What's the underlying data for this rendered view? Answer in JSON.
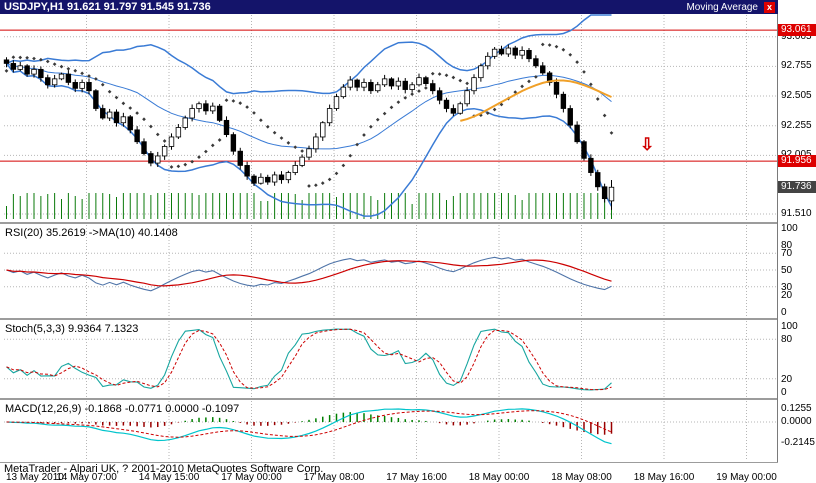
{
  "window": {
    "title": "USDJPY,H1  91.621 91.797 91.545 91.736",
    "indicator_label": "Moving Average",
    "close_button": "x"
  },
  "status_bar": {
    "text": "MetaTrader - Alpari UK, ? 2001-2010 MetaQuotes Software Corp."
  },
  "annotations": {
    "down_arrow_glyph": "⇩"
  },
  "colors": {
    "titlebar_bg": "#14146a",
    "grid": "#b6b6b6",
    "hline": "#d40000",
    "bands": "#3a7bd5",
    "ma": "#f0a028",
    "bull_body": "#ffffff",
    "bear_body": "#000000",
    "outline": "#000000",
    "volume": "#0a7a0a",
    "rsi": "#4f74a8",
    "signal_red": "#cc0000",
    "stoch": "#17a6a0",
    "macd_line": "#00c4cc",
    "macd_pos": "#007f00",
    "macd_neg": "#990000",
    "badge_red": "#dd0000",
    "badge_dark": "#444444"
  },
  "panels": {
    "rsi": {
      "label": "RSI(20) 35.2619  ->MA(10) 40.1408",
      "ticks": [
        "100",
        "80",
        "70",
        "50",
        "30",
        "20",
        "0"
      ],
      "grid": [
        70,
        50,
        30
      ],
      "range": [
        0,
        100
      ]
    },
    "stoch": {
      "label": "Stoch(5,3,3) 9.9364 7.1323",
      "ticks": [
        "100",
        "80",
        "20",
        "0"
      ],
      "grid": [
        80,
        20
      ],
      "range": [
        0,
        100
      ]
    },
    "macd": {
      "label": "MACD(12,26,9) -0.1868 -0.0771 0.0000 -0.1097",
      "ticks": [
        "0.1255",
        "0.0000",
        "-0.2145"
      ]
    }
  },
  "chart_data": {
    "type": "candlestick",
    "symbol": "USDJPY",
    "timeframe": "H1",
    "ohlc_current": {
      "open": 91.621,
      "high": 91.797,
      "low": 91.545,
      "close": 91.736
    },
    "closes": [
      92.78,
      92.73,
      92.76,
      92.69,
      92.73,
      92.66,
      92.6,
      92.65,
      92.69,
      92.62,
      92.57,
      92.62,
      92.55,
      92.4,
      92.32,
      92.37,
      92.28,
      92.33,
      92.22,
      92.12,
      92.02,
      91.94,
      92.0,
      92.08,
      92.16,
      92.24,
      92.32,
      92.4,
      92.44,
      92.38,
      92.42,
      92.3,
      92.18,
      92.04,
      91.92,
      91.83,
      91.77,
      91.82,
      91.78,
      91.84,
      91.8,
      91.86,
      91.92,
      91.99,
      92.06,
      92.16,
      92.28,
      92.4,
      92.5,
      92.58,
      92.64,
      92.58,
      92.62,
      92.55,
      92.6,
      92.65,
      92.59,
      92.63,
      92.56,
      92.6,
      92.66,
      92.61,
      92.55,
      92.47,
      92.4,
      92.36,
      92.44,
      92.55,
      92.66,
      92.76,
      92.84,
      92.9,
      92.86,
      92.91,
      92.85,
      92.89,
      92.82,
      92.76,
      92.7,
      92.62,
      92.52,
      92.4,
      92.26,
      92.12,
      91.98,
      91.86,
      91.74,
      91.64,
      91.736
    ],
    "x_labels": [
      "13 May 2010",
      "14 May 07:00",
      "14 May 15:00",
      "17 May 00:00",
      "17 May 08:00",
      "17 May 16:00",
      "18 May 00:00",
      "18 May 08:00",
      "18 May 16:00",
      "19 May 00:00"
    ],
    "label_step": 12,
    "y_ticks_main": [
      "93.005",
      "92.755",
      "92.505",
      "92.255",
      "92.005",
      "91.510"
    ],
    "hlines": [
      93.061,
      91.956
    ],
    "price_badges": [
      {
        "text": "93.061",
        "style": "red",
        "price": 93.061
      },
      {
        "text": "91.956",
        "style": "red",
        "price": 91.956
      },
      {
        "text": "91.736",
        "style": "dark",
        "price": 91.736
      }
    ],
    "series_names": [
      "Bollinger Bands",
      "Moving Average",
      "Parabolic SAR dots",
      "Volume",
      "RSI(20)+MA(10)",
      "Stochastic(5,3,3)",
      "MACD(12,26,9)"
    ]
  }
}
